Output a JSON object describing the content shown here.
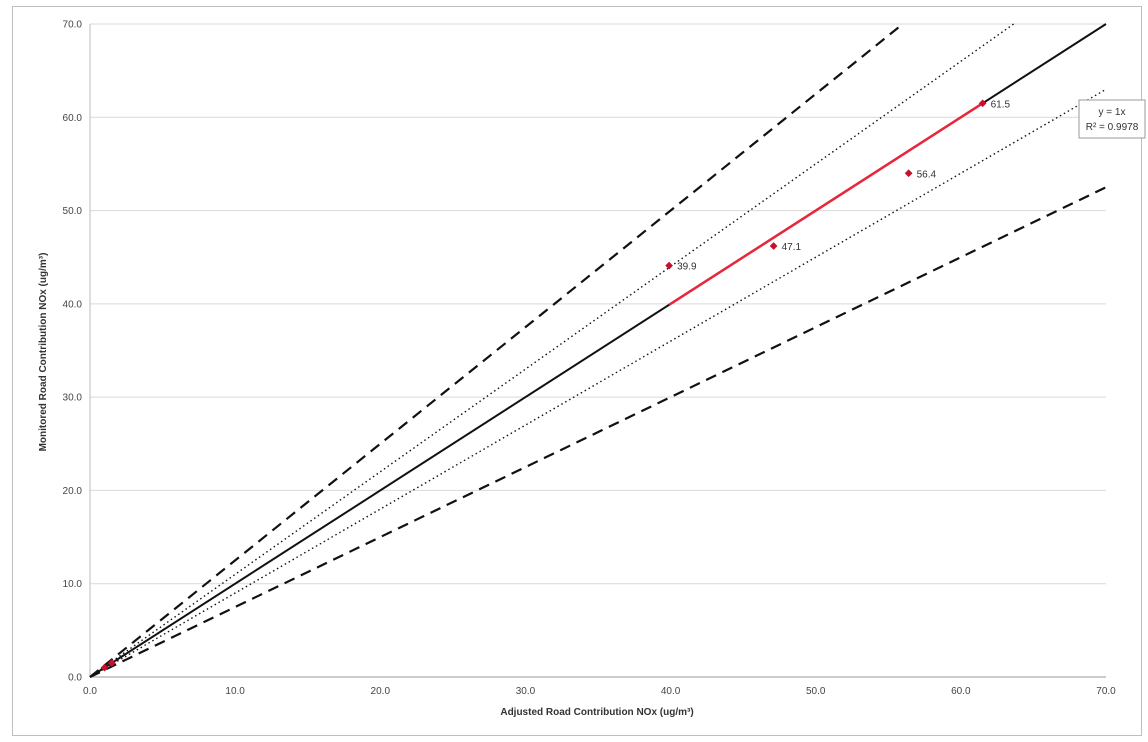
{
  "chart_data": {
    "type": "scatter",
    "title": "",
    "xlabel": "Adjusted Road Contribution NOx (ug/m³)",
    "ylabel": "Monitored Road Contribution NOx (ug/m³)",
    "xlim": [
      0,
      70
    ],
    "ylim": [
      0,
      70
    ],
    "x_ticks": [
      "0.0",
      "10.0",
      "20.0",
      "30.0",
      "40.0",
      "50.0",
      "60.0",
      "70.0"
    ],
    "y_ticks": [
      "0.0",
      "10.0",
      "20.0",
      "30.0",
      "40.0",
      "50.0",
      "60.0",
      "70.0"
    ],
    "grid": "horizontal",
    "points": [
      {
        "x": 1.0,
        "y": 1.0,
        "label": ""
      },
      {
        "x": 1.5,
        "y": 1.5,
        "label": ""
      },
      {
        "x": 39.9,
        "y": 44.1,
        "label": "39.9"
      },
      {
        "x": 47.1,
        "y": 46.2,
        "label": "47.1"
      },
      {
        "x": 56.4,
        "y": 54.0,
        "label": "56.4"
      },
      {
        "x": 61.5,
        "y": 61.5,
        "label": "61.5"
      }
    ],
    "reference_lines": [
      {
        "style": "solid",
        "slope": 1.0
      },
      {
        "style": "dotted",
        "slope": 1.1
      },
      {
        "style": "dotted",
        "slope": 0.9
      },
      {
        "style": "dashed",
        "slope": 1.25
      },
      {
        "style": "dashed",
        "slope": 0.75
      }
    ],
    "trendline": {
      "x_range": [
        39.9,
        61.5
      ],
      "slope": 1.0,
      "equation": "y = 1x",
      "r_squared": "R² = 0.9978",
      "color": "#e8273c"
    },
    "marker_color": "#c8102e"
  }
}
